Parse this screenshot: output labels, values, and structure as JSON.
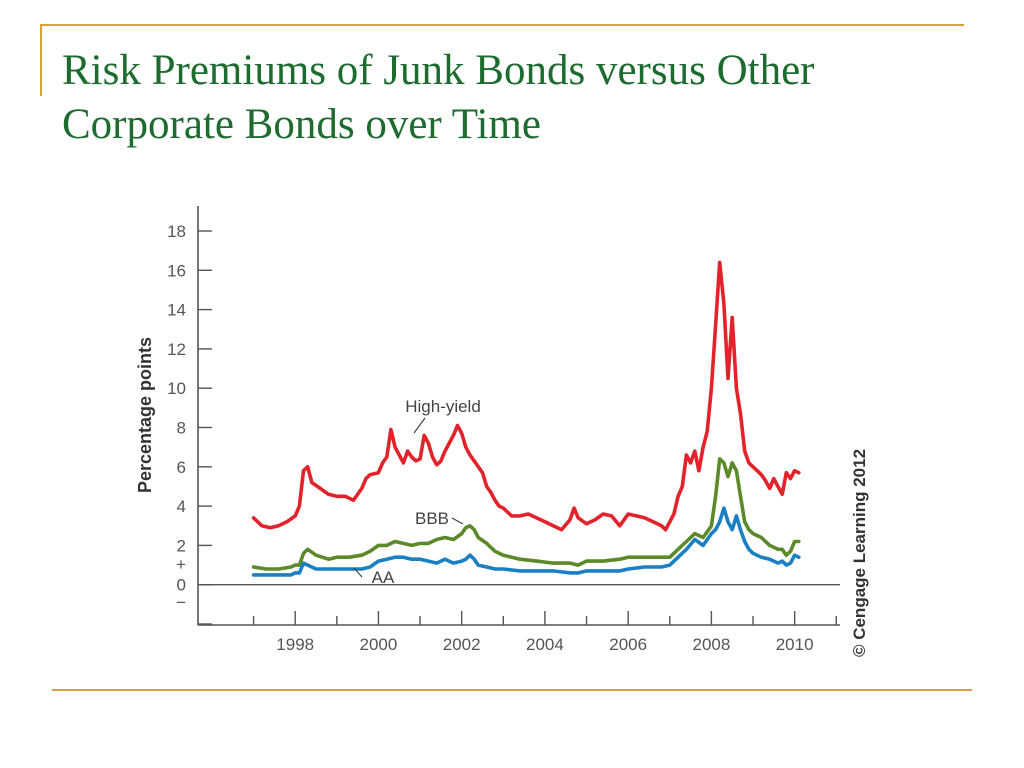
{
  "slide": {
    "title_line1": "Risk Premiums of Junk Bonds versus Other",
    "title_line2": "Corporate Bonds over Time",
    "accent_color": "#d4a43a",
    "title_color": "#1d6b2e"
  },
  "chart_data": {
    "type": "line",
    "title": "",
    "xlabel": "",
    "ylabel": "Percentage points",
    "xlim": [
      1996.4,
      2011.2
    ],
    "ylim": [
      -2,
      19
    ],
    "y_ticks": [
      0,
      2,
      4,
      6,
      8,
      10,
      12,
      14,
      16,
      18
    ],
    "x_ticks": [
      1998,
      2000,
      2002,
      2004,
      2006,
      2008,
      2010
    ],
    "y_sign_labels": [
      "+",
      "−"
    ],
    "copyright": "© Cengage Learning 2012",
    "grid": false,
    "series": [
      {
        "name": "High-yield",
        "color": "#e3232b",
        "x": [
          1997.0,
          1997.2,
          1997.4,
          1997.6,
          1997.8,
          1998.0,
          1998.1,
          1998.2,
          1998.3,
          1998.4,
          1998.6,
          1998.8,
          1999.0,
          1999.2,
          1999.4,
          1999.6,
          1999.7,
          1999.8,
          2000.0,
          2000.1,
          2000.2,
          2000.3,
          2000.4,
          2000.5,
          2000.6,
          2000.7,
          2000.8,
          2000.9,
          2001.0,
          2001.1,
          2001.2,
          2001.3,
          2001.4,
          2001.5,
          2001.6,
          2001.7,
          2001.8,
          2001.9,
          2002.0,
          2002.1,
          2002.2,
          2002.3,
          2002.4,
          2002.5,
          2002.6,
          2002.7,
          2002.8,
          2002.9,
          2003.0,
          2003.2,
          2003.4,
          2003.6,
          2003.8,
          2004.0,
          2004.2,
          2004.4,
          2004.6,
          2004.7,
          2004.8,
          2005.0,
          2005.2,
          2005.4,
          2005.6,
          2005.8,
          2006.0,
          2006.2,
          2006.4,
          2006.6,
          2006.8,
          2006.9,
          2007.0,
          2007.1,
          2007.2,
          2007.3,
          2007.4,
          2007.5,
          2007.6,
          2007.7,
          2007.8,
          2007.9,
          2008.0,
          2008.1,
          2008.2,
          2008.3,
          2008.4,
          2008.5,
          2008.6,
          2008.7,
          2008.8,
          2008.9,
          2009.0,
          2009.1,
          2009.2,
          2009.3,
          2009.4,
          2009.5,
          2009.6,
          2009.7,
          2009.8,
          2009.9,
          2010.0,
          2010.1
        ],
        "values": [
          3.4,
          3.0,
          2.9,
          3.0,
          3.2,
          3.5,
          4.0,
          5.8,
          6.0,
          5.2,
          4.9,
          4.6,
          4.5,
          4.5,
          4.3,
          4.9,
          5.4,
          5.6,
          5.7,
          6.2,
          6.5,
          7.9,
          7.0,
          6.6,
          6.2,
          6.8,
          6.5,
          6.3,
          6.4,
          7.6,
          7.2,
          6.5,
          6.1,
          6.3,
          6.8,
          7.2,
          7.6,
          8.1,
          7.7,
          7.0,
          6.6,
          6.3,
          6.0,
          5.7,
          5.0,
          4.7,
          4.3,
          4.0,
          3.9,
          3.5,
          3.5,
          3.6,
          3.4,
          3.2,
          3.0,
          2.8,
          3.3,
          3.9,
          3.4,
          3.1,
          3.3,
          3.6,
          3.5,
          3.0,
          3.6,
          3.5,
          3.4,
          3.2,
          3.0,
          2.8,
          3.2,
          3.6,
          4.5,
          5.0,
          6.6,
          6.2,
          6.8,
          5.8,
          7.0,
          7.8,
          10.0,
          13.2,
          16.4,
          14.3,
          10.5,
          13.6,
          10.0,
          8.7,
          6.8,
          6.2,
          6.0,
          5.8,
          5.6,
          5.3,
          4.9,
          5.4,
          5.0,
          4.6,
          5.7,
          5.4,
          5.8,
          5.7
        ]
      },
      {
        "name": "BBB",
        "color": "#5c8a2a",
        "x": [
          1997.0,
          1997.3,
          1997.6,
          1997.9,
          1998.0,
          1998.1,
          1998.2,
          1998.3,
          1998.5,
          1998.8,
          1999.0,
          1999.3,
          1999.6,
          1999.8,
          2000.0,
          2000.2,
          2000.4,
          2000.6,
          2000.8,
          2001.0,
          2001.2,
          2001.4,
          2001.6,
          2001.8,
          2002.0,
          2002.1,
          2002.2,
          2002.3,
          2002.4,
          2002.6,
          2002.8,
          2003.0,
          2003.4,
          2003.8,
          2004.2,
          2004.6,
          2004.8,
          2005.0,
          2005.4,
          2005.8,
          2006.0,
          2006.4,
          2006.8,
          2007.0,
          2007.2,
          2007.4,
          2007.6,
          2007.8,
          2008.0,
          2008.1,
          2008.2,
          2008.3,
          2008.4,
          2008.5,
          2008.6,
          2008.7,
          2008.8,
          2008.9,
          2009.0,
          2009.2,
          2009.4,
          2009.6,
          2009.7,
          2009.8,
          2009.9,
          2010.0,
          2010.1
        ],
        "values": [
          0.9,
          0.8,
          0.8,
          0.9,
          1.0,
          1.0,
          1.6,
          1.8,
          1.5,
          1.3,
          1.4,
          1.4,
          1.5,
          1.7,
          2.0,
          2.0,
          2.2,
          2.1,
          2.0,
          2.1,
          2.1,
          2.3,
          2.4,
          2.3,
          2.6,
          2.9,
          3.0,
          2.8,
          2.4,
          2.1,
          1.7,
          1.5,
          1.3,
          1.2,
          1.1,
          1.1,
          1.0,
          1.2,
          1.2,
          1.3,
          1.4,
          1.4,
          1.4,
          1.4,
          1.8,
          2.2,
          2.6,
          2.4,
          3.0,
          4.5,
          6.4,
          6.2,
          5.5,
          6.2,
          5.8,
          4.5,
          3.2,
          2.8,
          2.6,
          2.4,
          2.0,
          1.8,
          1.8,
          1.5,
          1.7,
          2.2,
          2.2
        ]
      },
      {
        "name": "AA",
        "color": "#1b7fc4",
        "x": [
          1997.0,
          1997.3,
          1997.6,
          1997.9,
          1998.0,
          1998.1,
          1998.2,
          1998.3,
          1998.5,
          1998.8,
          1999.0,
          1999.3,
          1999.6,
          1999.8,
          2000.0,
          2000.2,
          2000.4,
          2000.6,
          2000.8,
          2001.0,
          2001.2,
          2001.4,
          2001.6,
          2001.8,
          2002.0,
          2002.1,
          2002.2,
          2002.3,
          2002.4,
          2002.6,
          2002.8,
          2003.0,
          2003.4,
          2003.8,
          2004.2,
          2004.6,
          2004.8,
          2005.0,
          2005.4,
          2005.8,
          2006.0,
          2006.4,
          2006.8,
          2007.0,
          2007.2,
          2007.4,
          2007.6,
          2007.8,
          2008.0,
          2008.1,
          2008.2,
          2008.3,
          2008.4,
          2008.5,
          2008.6,
          2008.7,
          2008.8,
          2008.9,
          2009.0,
          2009.2,
          2009.4,
          2009.6,
          2009.7,
          2009.8,
          2009.9,
          2010.0,
          2010.1
        ],
        "values": [
          0.5,
          0.5,
          0.5,
          0.5,
          0.6,
          0.6,
          1.1,
          1.0,
          0.8,
          0.8,
          0.8,
          0.8,
          0.8,
          0.9,
          1.2,
          1.3,
          1.4,
          1.4,
          1.3,
          1.3,
          1.2,
          1.1,
          1.3,
          1.1,
          1.2,
          1.3,
          1.5,
          1.3,
          1.0,
          0.9,
          0.8,
          0.8,
          0.7,
          0.7,
          0.7,
          0.6,
          0.6,
          0.7,
          0.7,
          0.7,
          0.8,
          0.9,
          0.9,
          1.0,
          1.4,
          1.8,
          2.3,
          2.0,
          2.6,
          2.8,
          3.2,
          3.9,
          3.2,
          2.8,
          3.5,
          2.8,
          2.2,
          1.8,
          1.6,
          1.4,
          1.3,
          1.1,
          1.2,
          1.0,
          1.1,
          1.5,
          1.4
        ]
      }
    ],
    "annotations": [
      "High-yield",
      "BBB",
      "AA"
    ]
  }
}
